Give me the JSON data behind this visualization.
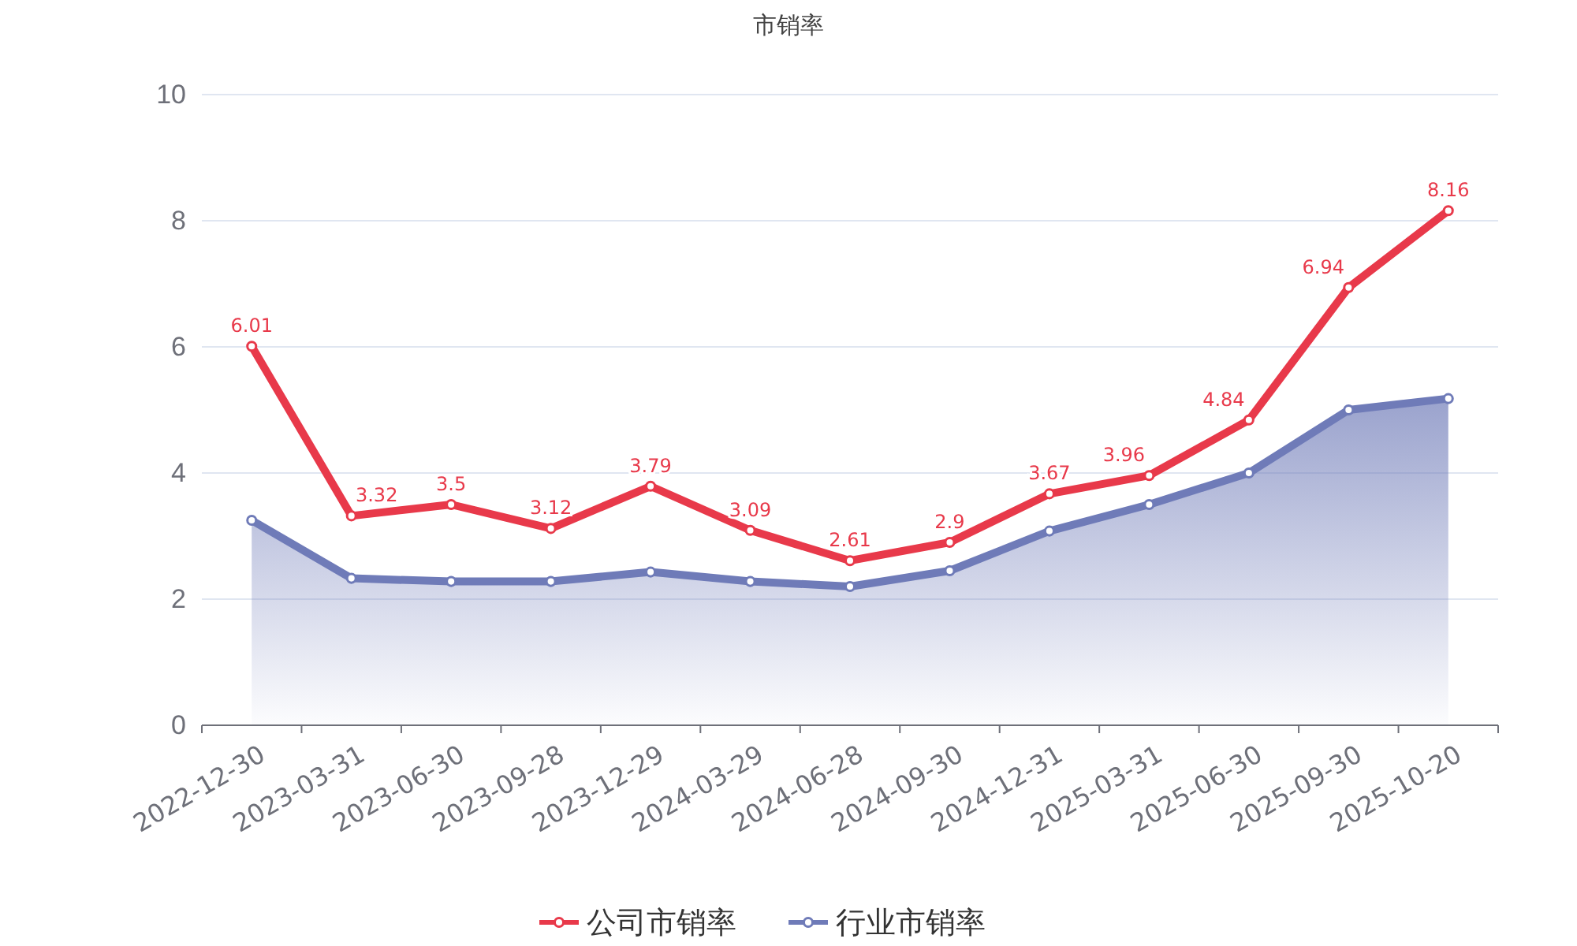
{
  "chart_data": {
    "type": "line",
    "title": "市销率",
    "categories": [
      "2022-12-30",
      "2023-03-31",
      "2023-06-30",
      "2023-09-28",
      "2023-12-29",
      "2024-03-29",
      "2024-06-28",
      "2024-09-30",
      "2024-12-31",
      "2025-03-31",
      "2025-06-30",
      "2025-09-30",
      "2025-10-20"
    ],
    "series": [
      {
        "name": "公司市销率",
        "color": "#e8394a",
        "values": [
          6.01,
          3.32,
          3.5,
          3.12,
          3.79,
          3.09,
          2.61,
          2.9,
          3.67,
          3.96,
          4.84,
          6.94,
          8.16
        ],
        "value_labels": [
          "6.01",
          "3.32",
          "3.5",
          "3.12",
          "3.79",
          "3.09",
          "2.61",
          "2.9",
          "3.67",
          "3.96",
          "4.84",
          "6.94",
          "8.16"
        ]
      },
      {
        "name": "行业市销率",
        "type": "area",
        "color": "#6f7bb8",
        "values": [
          3.25,
          2.33,
          2.28,
          2.28,
          2.43,
          2.28,
          2.2,
          2.45,
          3.08,
          3.5,
          4.0,
          5.0,
          5.18
        ]
      }
    ],
    "ylim": [
      0,
      10
    ],
    "yticks": [
      0,
      2,
      4,
      6,
      8,
      10
    ],
    "grid": "y",
    "legend": "bottom",
    "marker": "circle",
    "line_style": "solid"
  }
}
